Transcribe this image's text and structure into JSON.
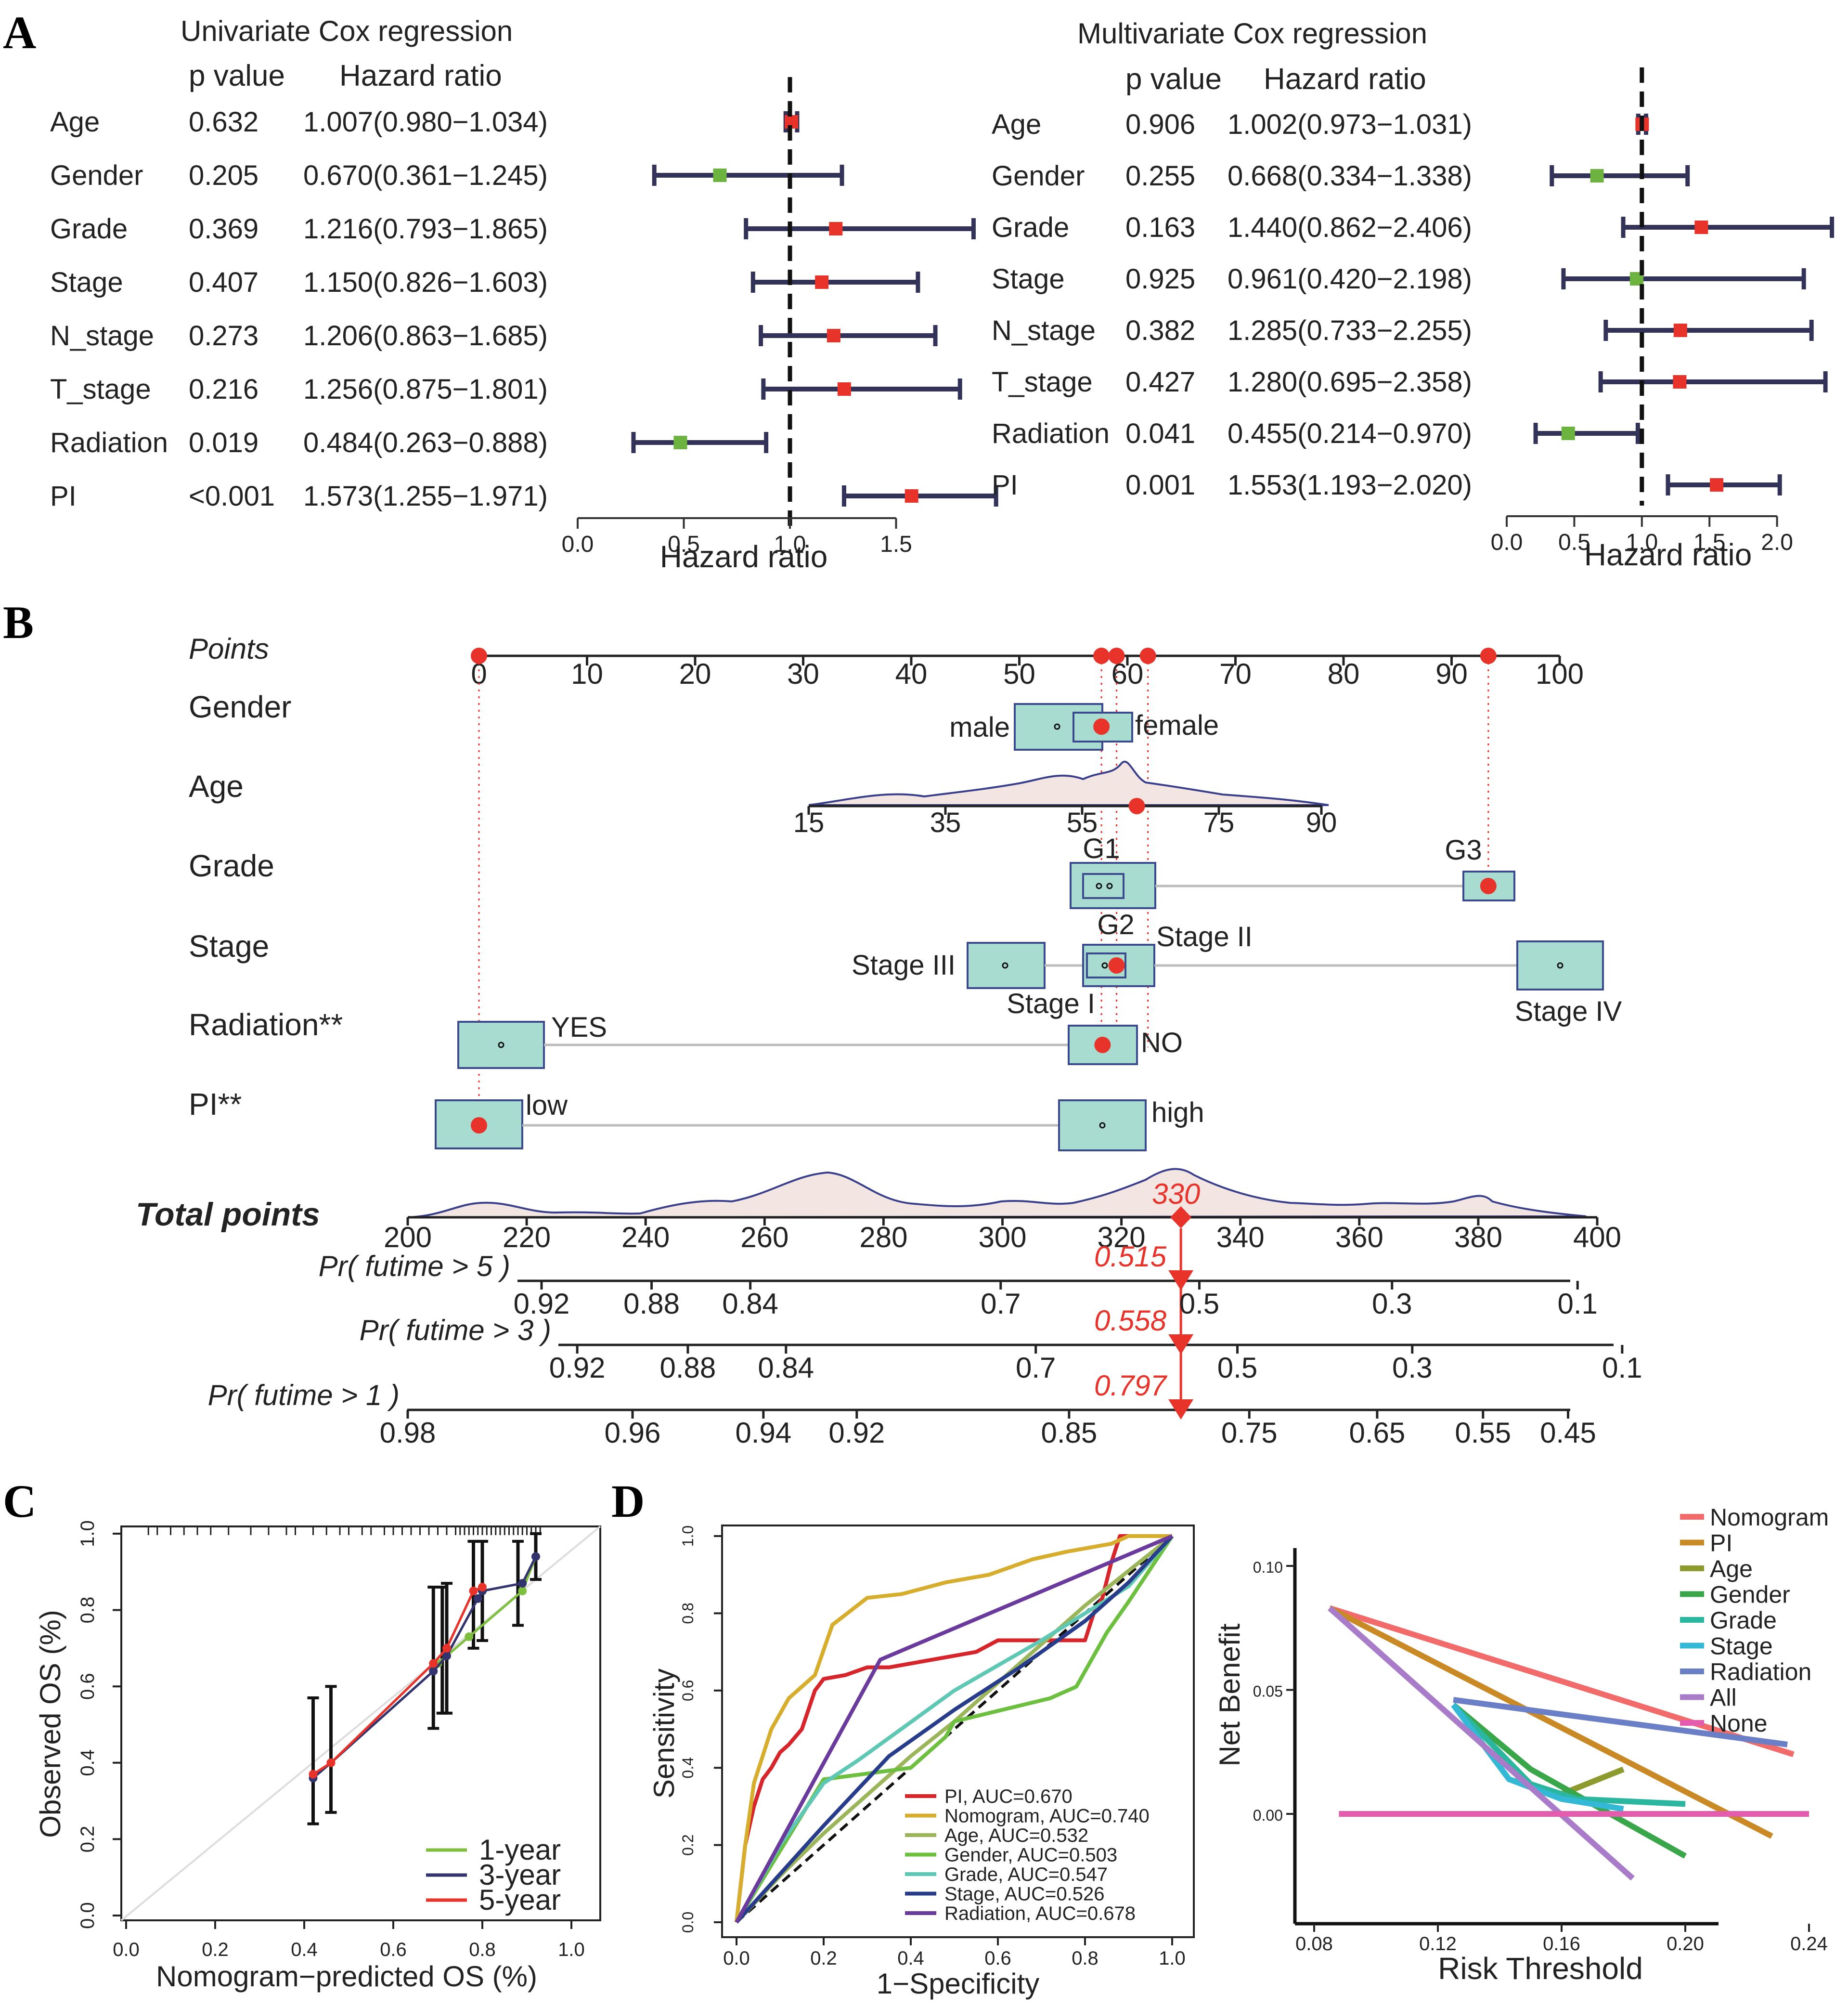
{
  "panel_labels": {
    "a": "A",
    "b": "B",
    "c": "C",
    "d": "D"
  },
  "colors": {
    "navy": "#33335a",
    "risk_red": "#e8332a",
    "protect_green": "#6db33f",
    "box_fill": "#a8dcd0",
    "box_stroke": "#3a4a8c",
    "density_fill": "#f3e6e2",
    "density_line": "#3a3f8c",
    "pointer_red": "#e8332a"
  },
  "chart_data": [
    {
      "id": "univariate_forest",
      "type": "forest",
      "title": "Univariate Cox regression",
      "col_headers": {
        "p": "p value",
        "hr": "Hazard ratio"
      },
      "xlabel": "Hazard ratio",
      "xlim": [
        0.0,
        2.0
      ],
      "ticks": [
        0.0,
        0.5,
        1.0,
        1.5
      ],
      "tick_labels": [
        "0.0",
        "0.5",
        "1.0",
        "1.5"
      ],
      "ref_line": 1.0,
      "rows": [
        {
          "label": "Age",
          "p": "0.632",
          "hr_text": "1.007(0.980−1.034)",
          "hr": 1.007,
          "lo": 0.98,
          "hi": 1.034
        },
        {
          "label": "Gender",
          "p": "0.205",
          "hr_text": "0.670(0.361−1.245)",
          "hr": 0.67,
          "lo": 0.361,
          "hi": 1.245
        },
        {
          "label": "Grade",
          "p": "0.369",
          "hr_text": "1.216(0.793−1.865)",
          "hr": 1.216,
          "lo": 0.793,
          "hi": 1.865
        },
        {
          "label": "Stage",
          "p": "0.407",
          "hr_text": "1.150(0.826−1.603)",
          "hr": 1.15,
          "lo": 0.826,
          "hi": 1.603
        },
        {
          "label": "N_stage",
          "p": "0.273",
          "hr_text": "1.206(0.863−1.685)",
          "hr": 1.206,
          "lo": 0.863,
          "hi": 1.685
        },
        {
          "label": "T_stage",
          "p": "0.216",
          "hr_text": "1.256(0.875−1.801)",
          "hr": 1.256,
          "lo": 0.875,
          "hi": 1.801
        },
        {
          "label": "Radiation",
          "p": "0.019",
          "hr_text": "0.484(0.263−0.888)",
          "hr": 0.484,
          "lo": 0.263,
          "hi": 0.888
        },
        {
          "label": "PI",
          "p": "<0.001",
          "hr_text": "1.573(1.255−1.971)",
          "hr": 1.573,
          "lo": 1.255,
          "hi": 1.971
        }
      ]
    },
    {
      "id": "multivariate_forest",
      "type": "forest",
      "title": "Multivariate Cox regression",
      "col_headers": {
        "p": "p value",
        "hr": "Hazard ratio"
      },
      "xlabel": "Hazard ratio",
      "xlim": [
        0.0,
        2.5
      ],
      "ticks": [
        0.0,
        0.5,
        1.0,
        1.5,
        2.0
      ],
      "tick_labels": [
        "0.0",
        "0.5",
        "1.0",
        "1.5",
        "2.0"
      ],
      "ref_line": 1.0,
      "rows": [
        {
          "label": "Age",
          "p": "0.906",
          "hr_text": "1.002(0.973−1.031)",
          "hr": 1.002,
          "lo": 0.973,
          "hi": 1.031
        },
        {
          "label": "Gender",
          "p": "0.255",
          "hr_text": "0.668(0.334−1.338)",
          "hr": 0.668,
          "lo": 0.334,
          "hi": 1.338
        },
        {
          "label": "Grade",
          "p": "0.163",
          "hr_text": "1.440(0.862−2.406)",
          "hr": 1.44,
          "lo": 0.862,
          "hi": 2.406
        },
        {
          "label": "Stage",
          "p": "0.925",
          "hr_text": "0.961(0.420−2.198)",
          "hr": 0.961,
          "lo": 0.42,
          "hi": 2.198
        },
        {
          "label": "N_stage",
          "p": "0.382",
          "hr_text": "1.285(0.733−2.255)",
          "hr": 1.285,
          "lo": 0.733,
          "hi": 2.255
        },
        {
          "label": "T_stage",
          "p": "0.427",
          "hr_text": "1.280(0.695−2.358)",
          "hr": 1.28,
          "lo": 0.695,
          "hi": 2.358
        },
        {
          "label": "Radiation",
          "p": "0.041",
          "hr_text": "0.455(0.214−0.970)",
          "hr": 0.455,
          "lo": 0.214,
          "hi": 0.97
        },
        {
          "label": "PI",
          "p": "0.001",
          "hr_text": "1.553(1.193−2.020)",
          "hr": 1.553,
          "lo": 1.193,
          "hi": 2.02
        }
      ]
    },
    {
      "id": "nomogram",
      "type": "nomogram",
      "points_label": "Points",
      "points_ticks": [
        0,
        10,
        20,
        30,
        40,
        50,
        60,
        70,
        80,
        90,
        100
      ],
      "selected_points": [
        0,
        57.6,
        59.0,
        61.9,
        93.4
      ],
      "variables": [
        {
          "label": "Gender",
          "levels": [
            {
              "name": "male",
              "points": 53.8
            },
            {
              "name": "female",
              "points": 57.6
            }
          ],
          "selected": "female"
        },
        {
          "label": "Age",
          "axis_ticks": [
            15,
            35,
            55,
            75,
            90
          ],
          "axis_points_range": [
            30.5,
            77.3
          ],
          "selected_value": 63
        },
        {
          "label": "Grade",
          "levels": [
            {
              "name": "G1",
              "points": 57.7
            },
            {
              "name": "G2",
              "points": 58.4
            },
            {
              "name": "G3",
              "points": 93.4
            }
          ],
          "selected": "G3"
        },
        {
          "label": "Stage",
          "levels": [
            {
              "name": "Stage III",
              "points": 48.1
            },
            {
              "name": "Stage I",
              "points": 57.7
            },
            {
              "name": "Stage II",
              "points": 59.0
            },
            {
              "name": "Stage IV",
              "points": 99.4
            }
          ],
          "selected": "Stage II"
        },
        {
          "label": "Radiation**",
          "levels": [
            {
              "name": "YES",
              "points": 2.0
            },
            {
              "name": "NO",
              "points": 57.7
            }
          ],
          "selected": "NO"
        },
        {
          "label": "PI**",
          "levels": [
            {
              "name": "low",
              "points": 0
            },
            {
              "name": "high",
              "points": 57.7
            }
          ],
          "selected": "low"
        }
      ],
      "total_points": {
        "label": "Total points",
        "ticks": [
          200,
          220,
          240,
          260,
          280,
          300,
          320,
          340,
          360,
          380,
          400
        ],
        "value": 330,
        "value_text": "330"
      },
      "probability_axes": [
        {
          "label": "Pr( futime > 5 )",
          "ticks": [
            "0.92",
            "0.88",
            "0.84",
            "0.7",
            "0.5",
            "0.3",
            "0.1"
          ],
          "tick_total_points": [
            222.5,
            241,
            257.6,
            299.7,
            333.1,
            365.5,
            396.7
          ],
          "value_text": "0.515"
        },
        {
          "label": "Pr( futime > 3 )",
          "ticks": [
            "0.92",
            "0.88",
            "0.84",
            "0.7",
            "0.5",
            "0.3",
            "0.1"
          ],
          "tick_total_points": [
            228.5,
            247.1,
            263.6,
            305.6,
            339.5,
            368.9,
            404.2
          ],
          "value_text": "0.558"
        },
        {
          "label": "Pr( futime > 1 )",
          "ticks": [
            "0.98",
            "0.96",
            "0.94",
            "0.92",
            "0.85",
            "0.75",
            "0.65",
            "0.55",
            "0.45"
          ],
          "tick_total_points": [
            200.0,
            237.8,
            259.8,
            275.5,
            311.2,
            341.5,
            363.0,
            380.8,
            395.1
          ],
          "value_text": "0.797"
        }
      ]
    },
    {
      "id": "calibration",
      "type": "line",
      "xlabel": "Nomogram−predicted OS (%)",
      "ylabel": "Observed OS (%)",
      "xlim": [
        0.0,
        1.0
      ],
      "ylim": [
        0.0,
        1.0
      ],
      "ticks": [
        "0.0",
        "0.2",
        "0.4",
        "0.6",
        "0.8",
        "1.0"
      ],
      "rug": [
        0.05,
        0.07,
        0.1,
        0.13,
        0.16,
        0.19,
        0.23,
        0.28,
        0.32,
        0.36,
        0.38,
        0.42,
        0.45,
        0.48,
        0.5,
        0.53,
        0.55,
        0.58,
        0.6,
        0.62,
        0.64,
        0.66,
        0.68,
        0.7,
        0.72,
        0.74,
        0.75,
        0.76,
        0.77,
        0.78,
        0.79,
        0.8,
        0.81,
        0.82,
        0.83,
        0.84,
        0.85,
        0.86,
        0.87,
        0.88,
        0.89,
        0.9,
        0.91,
        0.92,
        0.93
      ],
      "series": [
        {
          "name": "1-year",
          "color": "#7fbf3f",
          "x": [
            0.7,
            0.77,
            0.89,
            0.92
          ],
          "y": [
            0.66,
            0.73,
            0.85,
            0.94
          ]
        },
        {
          "name": "3-year",
          "color": "#33336e",
          "x": [
            0.42,
            0.46,
            0.69,
            0.72,
            0.79,
            0.8,
            0.89,
            0.92
          ],
          "y": [
            0.36,
            0.4,
            0.64,
            0.68,
            0.83,
            0.85,
            0.87,
            0.94
          ]
        },
        {
          "name": "5-year",
          "color": "#e8332a",
          "x": [
            0.42,
            0.46,
            0.69,
            0.72,
            0.78,
            0.8
          ],
          "y": [
            0.37,
            0.4,
            0.66,
            0.7,
            0.85,
            0.86
          ]
        }
      ],
      "error_bars": [
        {
          "x": 0.42,
          "lo": 0.24,
          "hi": 0.57
        },
        {
          "x": 0.46,
          "lo": 0.27,
          "hi": 0.6
        },
        {
          "x": 0.69,
          "lo": 0.49,
          "hi": 0.86
        },
        {
          "x": 0.71,
          "lo": 0.53,
          "hi": 0.86
        },
        {
          "x": 0.72,
          "lo": 0.53,
          "hi": 0.87
        },
        {
          "x": 0.78,
          "lo": 0.7,
          "hi": 0.98
        },
        {
          "x": 0.8,
          "lo": 0.72,
          "hi": 0.98
        },
        {
          "x": 0.88,
          "lo": 0.76,
          "hi": 0.98
        },
        {
          "x": 0.92,
          "lo": 0.88,
          "hi": 1.0
        }
      ]
    },
    {
      "id": "roc",
      "type": "line",
      "xlabel": "1−Specificity",
      "ylabel": "Sensitivity",
      "xlim": [
        0.0,
        1.0
      ],
      "ylim": [
        0.0,
        1.0
      ],
      "ticks": [
        "0.0",
        "0.2",
        "0.4",
        "0.6",
        "0.8",
        "1.0"
      ],
      "series": [
        {
          "name": "PI, AUC=0.670",
          "color": "#d7262b",
          "x": [
            0,
            0.02,
            0.04,
            0.06,
            0.08,
            0.1,
            0.12,
            0.15,
            0.18,
            0.2,
            0.25,
            0.3,
            0.35,
            0.55,
            0.6,
            0.8,
            0.82,
            0.84,
            0.86,
            0.88,
            1.0
          ],
          "y": [
            0,
            0.2,
            0.3,
            0.37,
            0.4,
            0.44,
            0.46,
            0.5,
            0.6,
            0.63,
            0.64,
            0.66,
            0.66,
            0.7,
            0.73,
            0.73,
            0.8,
            0.84,
            0.93,
            1.0,
            1.0
          ]
        },
        {
          "name": "Nomogram, AUC=0.740",
          "color": "#d6ad2c",
          "x": [
            0,
            0.02,
            0.04,
            0.08,
            0.12,
            0.18,
            0.22,
            0.3,
            0.38,
            0.48,
            0.58,
            0.68,
            0.76,
            0.86,
            0.9,
            1.0
          ],
          "y": [
            0,
            0.2,
            0.36,
            0.5,
            0.58,
            0.64,
            0.77,
            0.84,
            0.85,
            0.88,
            0.9,
            0.94,
            0.96,
            0.98,
            1.0,
            1.0
          ]
        },
        {
          "name": "Age, AUC=0.532",
          "color": "#9bb65a",
          "x": [
            0,
            0.1,
            0.2,
            0.3,
            0.4,
            0.5,
            0.6,
            0.7,
            0.8,
            0.9,
            1.0
          ],
          "y": [
            0,
            0.12,
            0.23,
            0.33,
            0.43,
            0.52,
            0.62,
            0.72,
            0.82,
            0.91,
            1.0
          ]
        },
        {
          "name": "Gender, AUC=0.503",
          "color": "#6dbf3f",
          "x": [
            0,
            0.2,
            0.4,
            0.48,
            0.5,
            0.72,
            0.78,
            0.85,
            0.9,
            1.0
          ],
          "y": [
            0,
            0.37,
            0.4,
            0.48,
            0.52,
            0.58,
            0.61,
            0.75,
            0.83,
            1.0
          ]
        },
        {
          "name": "Grade, AUC=0.547",
          "color": "#5fc8b4",
          "x": [
            0,
            0.1,
            0.2,
            0.28,
            0.5,
            0.7,
            0.9,
            1.0
          ],
          "y": [
            0,
            0.2,
            0.36,
            0.42,
            0.6,
            0.73,
            0.87,
            1.0
          ]
        },
        {
          "name": "Stage, AUC=0.526",
          "color": "#283c8c",
          "x": [
            0,
            0.2,
            0.35,
            0.5,
            0.65,
            0.8,
            0.9,
            1.0
          ],
          "y": [
            0,
            0.25,
            0.43,
            0.55,
            0.66,
            0.78,
            0.88,
            1.0
          ]
        },
        {
          "name": "Radiation, AUC=0.678",
          "color": "#6a3a9c",
          "x": [
            0,
            0.33,
            1.0
          ],
          "y": [
            0,
            0.68,
            1.0
          ]
        }
      ]
    },
    {
      "id": "dca",
      "type": "line",
      "xlabel": "Risk Threshold",
      "ylabel": "Net Benefit",
      "xlim": [
        0.08,
        0.24
      ],
      "ylim": [
        -0.025,
        0.1
      ],
      "xticks": [
        "0.08",
        "0.12",
        "0.16",
        "0.20",
        "0.24"
      ],
      "yticks": [
        "0.00",
        "0.05",
        "0.10"
      ],
      "series": [
        {
          "name": "Nomogram",
          "color": "#f26b6b",
          "x": [
            0.085,
            0.235
          ],
          "y": [
            0.083,
            0.024
          ]
        },
        {
          "name": "PI",
          "color": "#c98a26",
          "x": [
            0.085,
            0.228
          ],
          "y": [
            0.083,
            -0.009
          ]
        },
        {
          "name": "Age",
          "color": "#8c9a2e",
          "x": [
            0.145,
            0.16,
            0.18
          ],
          "y": [
            0.014,
            0.008,
            0.018
          ]
        },
        {
          "name": "Gender",
          "color": "#3aa64a",
          "x": [
            0.125,
            0.15,
            0.2
          ],
          "y": [
            0.044,
            0.018,
            -0.017
          ]
        },
        {
          "name": "Grade",
          "color": "#2bb6a0",
          "x": [
            0.125,
            0.15,
            0.165,
            0.2
          ],
          "y": [
            0.044,
            0.012,
            0.006,
            0.004
          ]
        },
        {
          "name": "Stage",
          "color": "#33b8d6",
          "x": [
            0.125,
            0.143,
            0.16,
            0.18
          ],
          "y": [
            0.044,
            0.014,
            0.006,
            0.002
          ]
        },
        {
          "name": "Radiation",
          "color": "#6b7fc6",
          "x": [
            0.125,
            0.233
          ],
          "y": [
            0.046,
            0.028
          ]
        },
        {
          "name": "All",
          "color": "#a87cc8",
          "x": [
            0.085,
            0.183
          ],
          "y": [
            0.083,
            -0.026
          ]
        },
        {
          "name": "None",
          "color": "#e45cae",
          "x": [
            0.088,
            0.24
          ],
          "y": [
            0.0,
            0.0
          ]
        }
      ]
    }
  ]
}
